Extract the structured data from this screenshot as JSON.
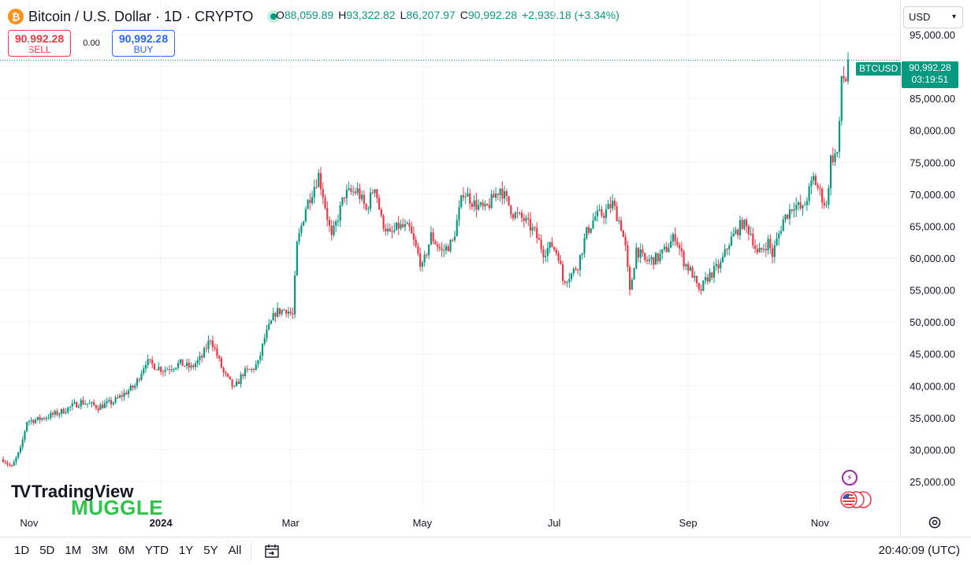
{
  "header": {
    "logo_glyph": "₿",
    "symbol_title": "Bitcoin / U.S. Dollar · 1D · CRYPTO",
    "ohlc": [
      {
        "key": "O",
        "value": "88,059.89"
      },
      {
        "key": "H",
        "value": "93,322.82"
      },
      {
        "key": "L",
        "value": "86,207.97"
      },
      {
        "key": "C",
        "value": "90,992.28"
      }
    ],
    "change": "+2,939.18 (+3.34%)"
  },
  "trade": {
    "sell_price": "90,992.28",
    "sell_label": "SELL",
    "spread": "0.00",
    "buy_price": "90,992.28",
    "buy_label": "BUY"
  },
  "currency": "USD",
  "last_price": {
    "symbol": "BTCUSD",
    "price": "90,992.28",
    "countdown": "03:19:51"
  },
  "watermark": {
    "brand": "TradingView",
    "overlay": "MUGGLE"
  },
  "footer": {
    "ranges": [
      "1D",
      "5D",
      "1M",
      "3M",
      "6M",
      "YTD",
      "1Y",
      "5Y",
      "All"
    ],
    "clock": "20:40:09 (UTC)"
  },
  "colors": {
    "up": "#089981",
    "down": "#f23645",
    "grid": "#f0f3fa",
    "accent": "#2962ff"
  },
  "chart_data": {
    "type": "candlestick",
    "symbol": "BTCUSD",
    "interval": "1D",
    "ylim": [
      20000,
      97500
    ],
    "y_ticks": [
      25000,
      30000,
      35000,
      40000,
      45000,
      50000,
      55000,
      60000,
      65000,
      70000,
      75000,
      80000,
      85000,
      90000,
      95000
    ],
    "y_tick_labels": [
      "25,000.00",
      "30,000.00",
      "35,000.00",
      "40,000.00",
      "45,000.00",
      "50,000.00",
      "55,000.00",
      "60,000.00",
      "65,000.00",
      "70,000.00",
      "75,000.00",
      "80,000.00",
      "85,000.00",
      "90,000.00",
      "95,000.00"
    ],
    "x_ticks": [
      "Nov",
      "2024",
      "Mar",
      "May",
      "Jul",
      "Sep",
      "Nov"
    ],
    "x_range": [
      "2023-10-20",
      "2024-11-14"
    ],
    "x_tick_dates": [
      "2023-11-01",
      "2024-01-01",
      "2024-03-01",
      "2024-05-01",
      "2024-07-01",
      "2024-09-01",
      "2024-11-01"
    ],
    "last_close": 90992.28,
    "price_trajectory": [
      [
        "2023-10-20",
        28500
      ],
      [
        "2023-10-24",
        27200
      ],
      [
        "2023-10-28",
        30000
      ],
      [
        "2023-10-31",
        34500
      ],
      [
        "2023-11-05",
        34700
      ],
      [
        "2023-11-15",
        35800
      ],
      [
        "2023-11-25",
        37500
      ],
      [
        "2023-12-03",
        36700
      ],
      [
        "2023-12-10",
        37500
      ],
      [
        "2023-12-20",
        40000
      ],
      [
        "2023-12-25",
        43800
      ],
      [
        "2024-01-02",
        42500
      ],
      [
        "2024-01-10",
        43500
      ],
      [
        "2024-01-15",
        42800
      ],
      [
        "2024-01-20",
        44500
      ],
      [
        "2024-01-24",
        47500
      ],
      [
        "2024-01-30",
        42000
      ],
      [
        "2024-02-04",
        39500
      ],
      [
        "2024-02-08",
        42000
      ],
      [
        "2024-02-12",
        42500
      ],
      [
        "2024-02-15",
        43500
      ],
      [
        "2024-02-18",
        47500
      ],
      [
        "2024-02-23",
        51500
      ],
      [
        "2024-02-28",
        52000
      ],
      [
        "2024-03-02",
        51000
      ],
      [
        "2024-03-04",
        62000
      ],
      [
        "2024-03-08",
        68000
      ],
      [
        "2024-03-14",
        73000
      ],
      [
        "2024-03-16",
        70000
      ],
      [
        "2024-03-20",
        63000
      ],
      [
        "2024-03-26",
        70000
      ],
      [
        "2024-04-01",
        70500
      ],
      [
        "2024-04-05",
        67500
      ],
      [
        "2024-04-09",
        71500
      ],
      [
        "2024-04-12",
        66000
      ],
      [
        "2024-04-16",
        63500
      ],
      [
        "2024-04-20",
        65000
      ],
      [
        "2024-04-25",
        64500
      ],
      [
        "2024-05-01",
        58500
      ],
      [
        "2024-05-05",
        63500
      ],
      [
        "2024-05-10",
        61000
      ],
      [
        "2024-05-15",
        62500
      ],
      [
        "2024-05-20",
        70500
      ],
      [
        "2024-05-25",
        68500
      ],
      [
        "2024-05-30",
        67500
      ],
      [
        "2024-06-06",
        71000
      ],
      [
        "2024-06-12",
        67000
      ],
      [
        "2024-06-17",
        66000
      ],
      [
        "2024-06-22",
        64000
      ],
      [
        "2024-06-26",
        61000
      ],
      [
        "2024-06-30",
        62000
      ],
      [
        "2024-07-03",
        60500
      ],
      [
        "2024-07-05",
        56500
      ],
      [
        "2024-07-09",
        57500
      ],
      [
        "2024-07-12",
        59000
      ],
      [
        "2024-07-16",
        64000
      ],
      [
        "2024-07-20",
        66500
      ],
      [
        "2024-07-24",
        67000
      ],
      [
        "2024-07-28",
        68500
      ],
      [
        "2024-08-01",
        65000
      ],
      [
        "2024-08-03",
        61500
      ],
      [
        "2024-08-05",
        54500
      ],
      [
        "2024-08-08",
        61500
      ],
      [
        "2024-08-12",
        59500
      ],
      [
        "2024-08-18",
        60000
      ],
      [
        "2024-08-22",
        61500
      ],
      [
        "2024-08-26",
        63500
      ],
      [
        "2024-08-30",
        59500
      ],
      [
        "2024-09-03",
        57500
      ],
      [
        "2024-09-06",
        54500
      ],
      [
        "2024-09-10",
        57000
      ],
      [
        "2024-09-16",
        59000
      ],
      [
        "2024-09-20",
        62500
      ],
      [
        "2024-09-26",
        65500
      ],
      [
        "2024-09-30",
        64000
      ],
      [
        "2024-10-03",
        60500
      ],
      [
        "2024-10-08",
        62500
      ],
      [
        "2024-10-10",
        60500
      ],
      [
        "2024-10-15",
        66000
      ],
      [
        "2024-10-20",
        68500
      ],
      [
        "2024-10-24",
        67500
      ],
      [
        "2024-10-29",
        72500
      ],
      [
        "2024-11-02",
        69500
      ],
      [
        "2024-11-04",
        68000
      ],
      [
        "2024-11-06",
        75500
      ],
      [
        "2024-11-09",
        76500
      ],
      [
        "2024-11-10",
        80500
      ],
      [
        "2024-11-11",
        88500
      ],
      [
        "2024-11-13",
        88000
      ],
      [
        "2024-11-14",
        90992
      ]
    ]
  }
}
